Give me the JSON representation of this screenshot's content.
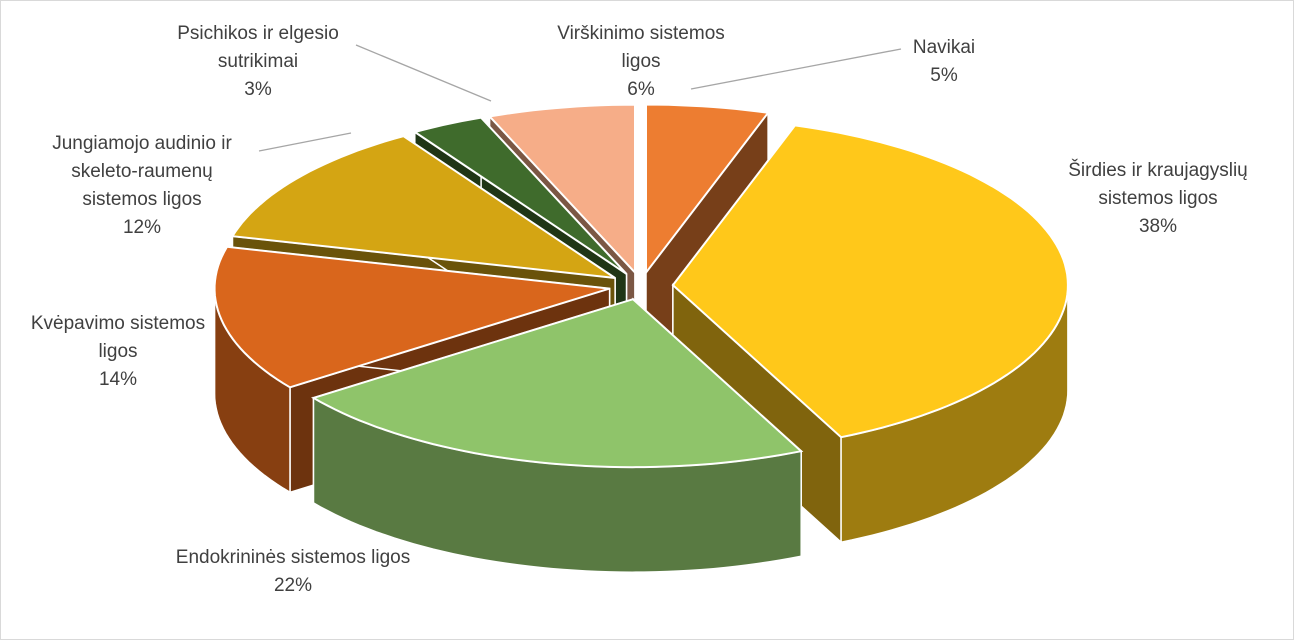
{
  "chart_data": {
    "type": "pie3d",
    "categories": [
      "Navikai",
      "Širdies ir kraujagyslių sistemos ligos",
      "Endokrininės sistemos ligos",
      "Kvėpavimo sistemos ligos",
      "Jungiamojo audinio ir skeleto-raumenų sistemos ligos",
      "Psichikos ir elgesio sutrikimai",
      "Virškinimo sistemos ligos"
    ],
    "values": [
      5,
      38,
      22,
      14,
      12,
      3,
      6
    ],
    "value_labels": [
      "5%",
      "38%",
      "22%",
      "14%",
      "12%",
      "3%",
      "6%"
    ],
    "colors": [
      "#ed7d31",
      "#ffc81a",
      "#8fc46a",
      "#d9661c",
      "#d4a513",
      "#3f6b2c",
      "#f6ad88"
    ]
  }
}
